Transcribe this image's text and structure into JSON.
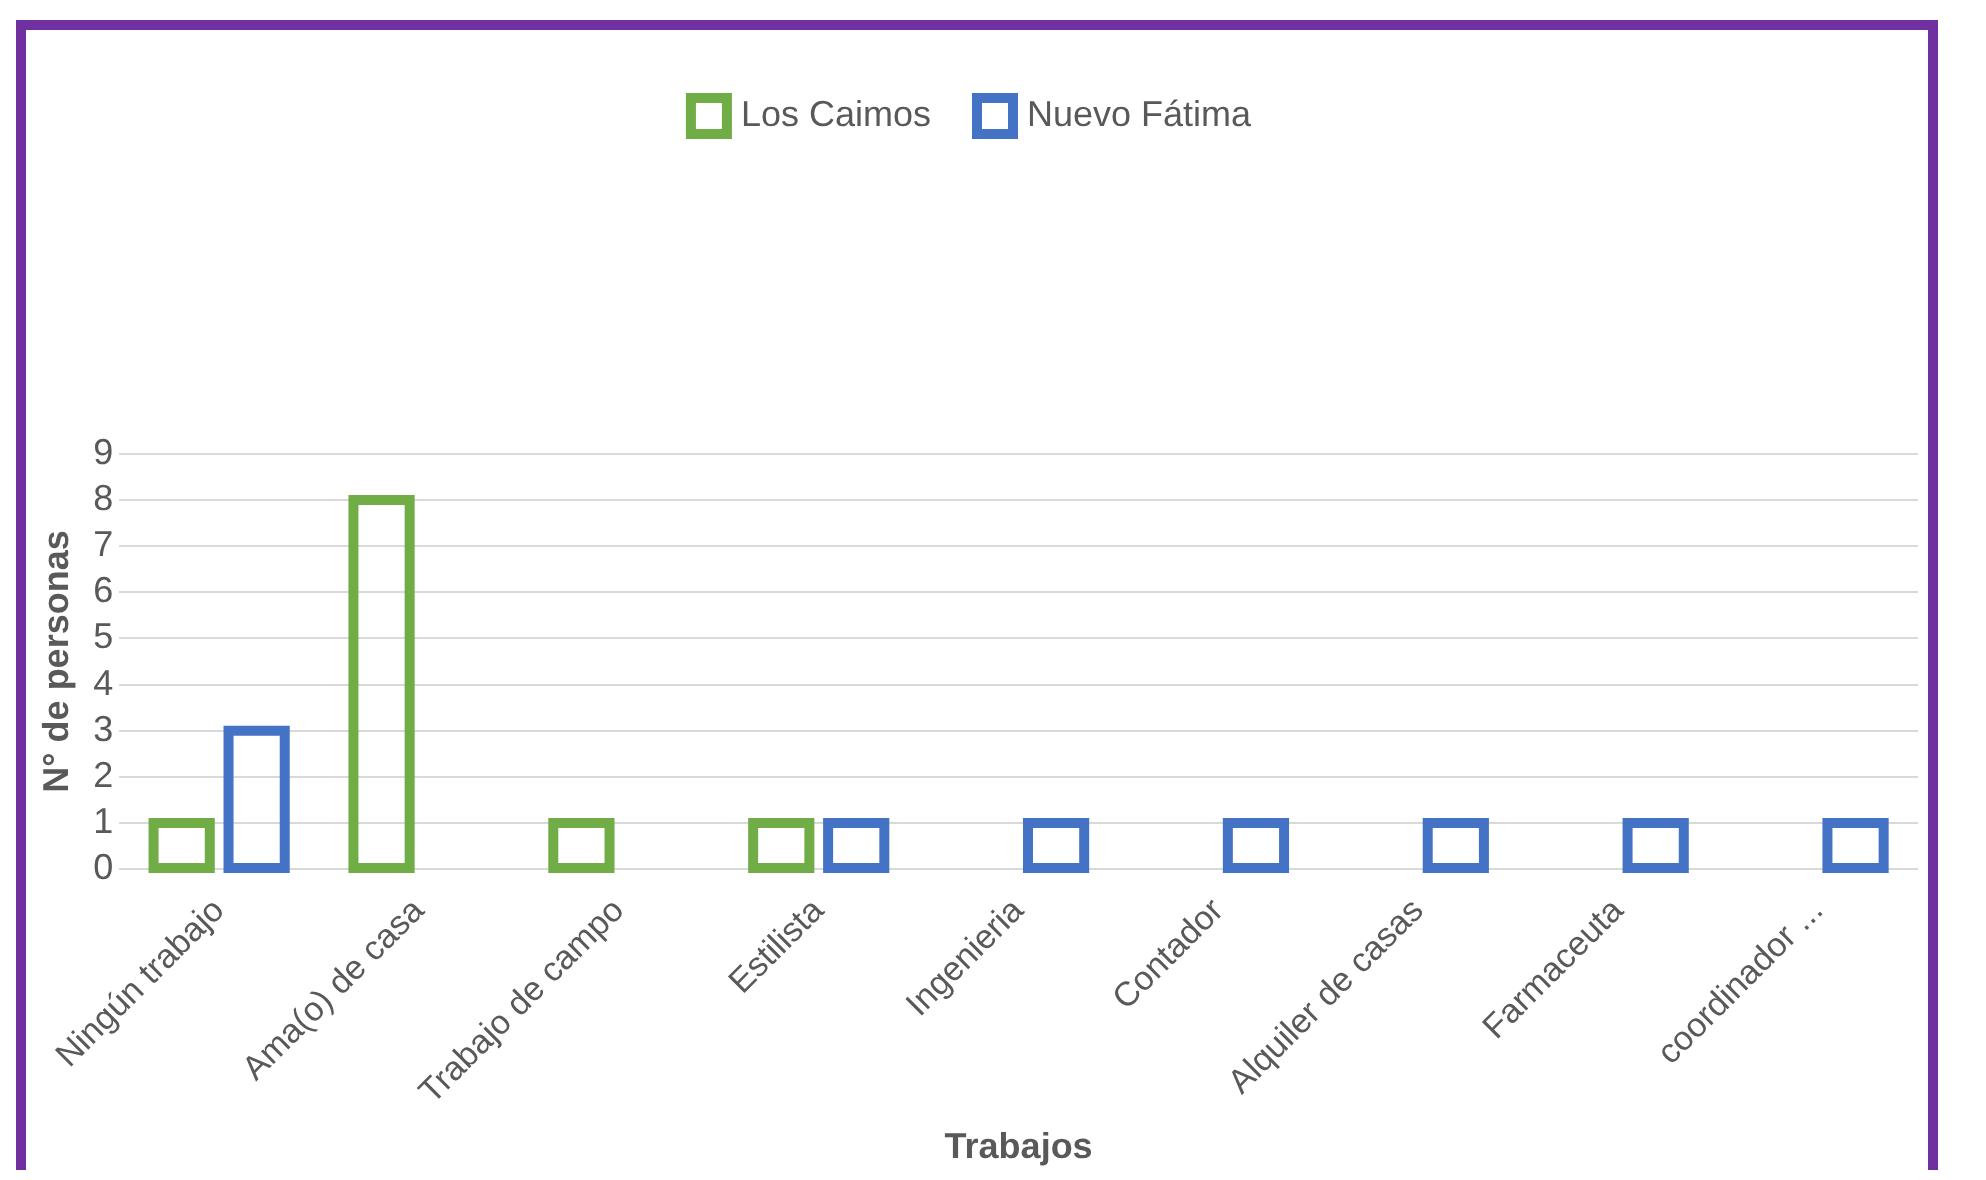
{
  "chart_data": {
    "type": "bar",
    "xlabel": "Trabajos",
    "ylabel": "N° de personas",
    "categories": [
      "Ningún trabajo",
      "Ama(o) de casa",
      "Trabajo de campo",
      "Estilista",
      "Ingenieria",
      "Contador",
      "Alquiler de casas",
      "Farmaceuta",
      "coordinador ..."
    ],
    "series": [
      {
        "name": "Los Caimos",
        "color": "#70ad47",
        "values": [
          1,
          8,
          1,
          1,
          null,
          null,
          null,
          null,
          null
        ]
      },
      {
        "name": "Nuevo Fátima",
        "color": "#4472c4",
        "values": [
          3,
          null,
          null,
          1,
          1,
          1,
          1,
          1,
          1
        ]
      }
    ],
    "ylim": [
      0,
      9
    ],
    "yticks": [
      0,
      1,
      2,
      3,
      4,
      5,
      6,
      7,
      8,
      9
    ],
    "grid": "y",
    "legend": "top"
  }
}
